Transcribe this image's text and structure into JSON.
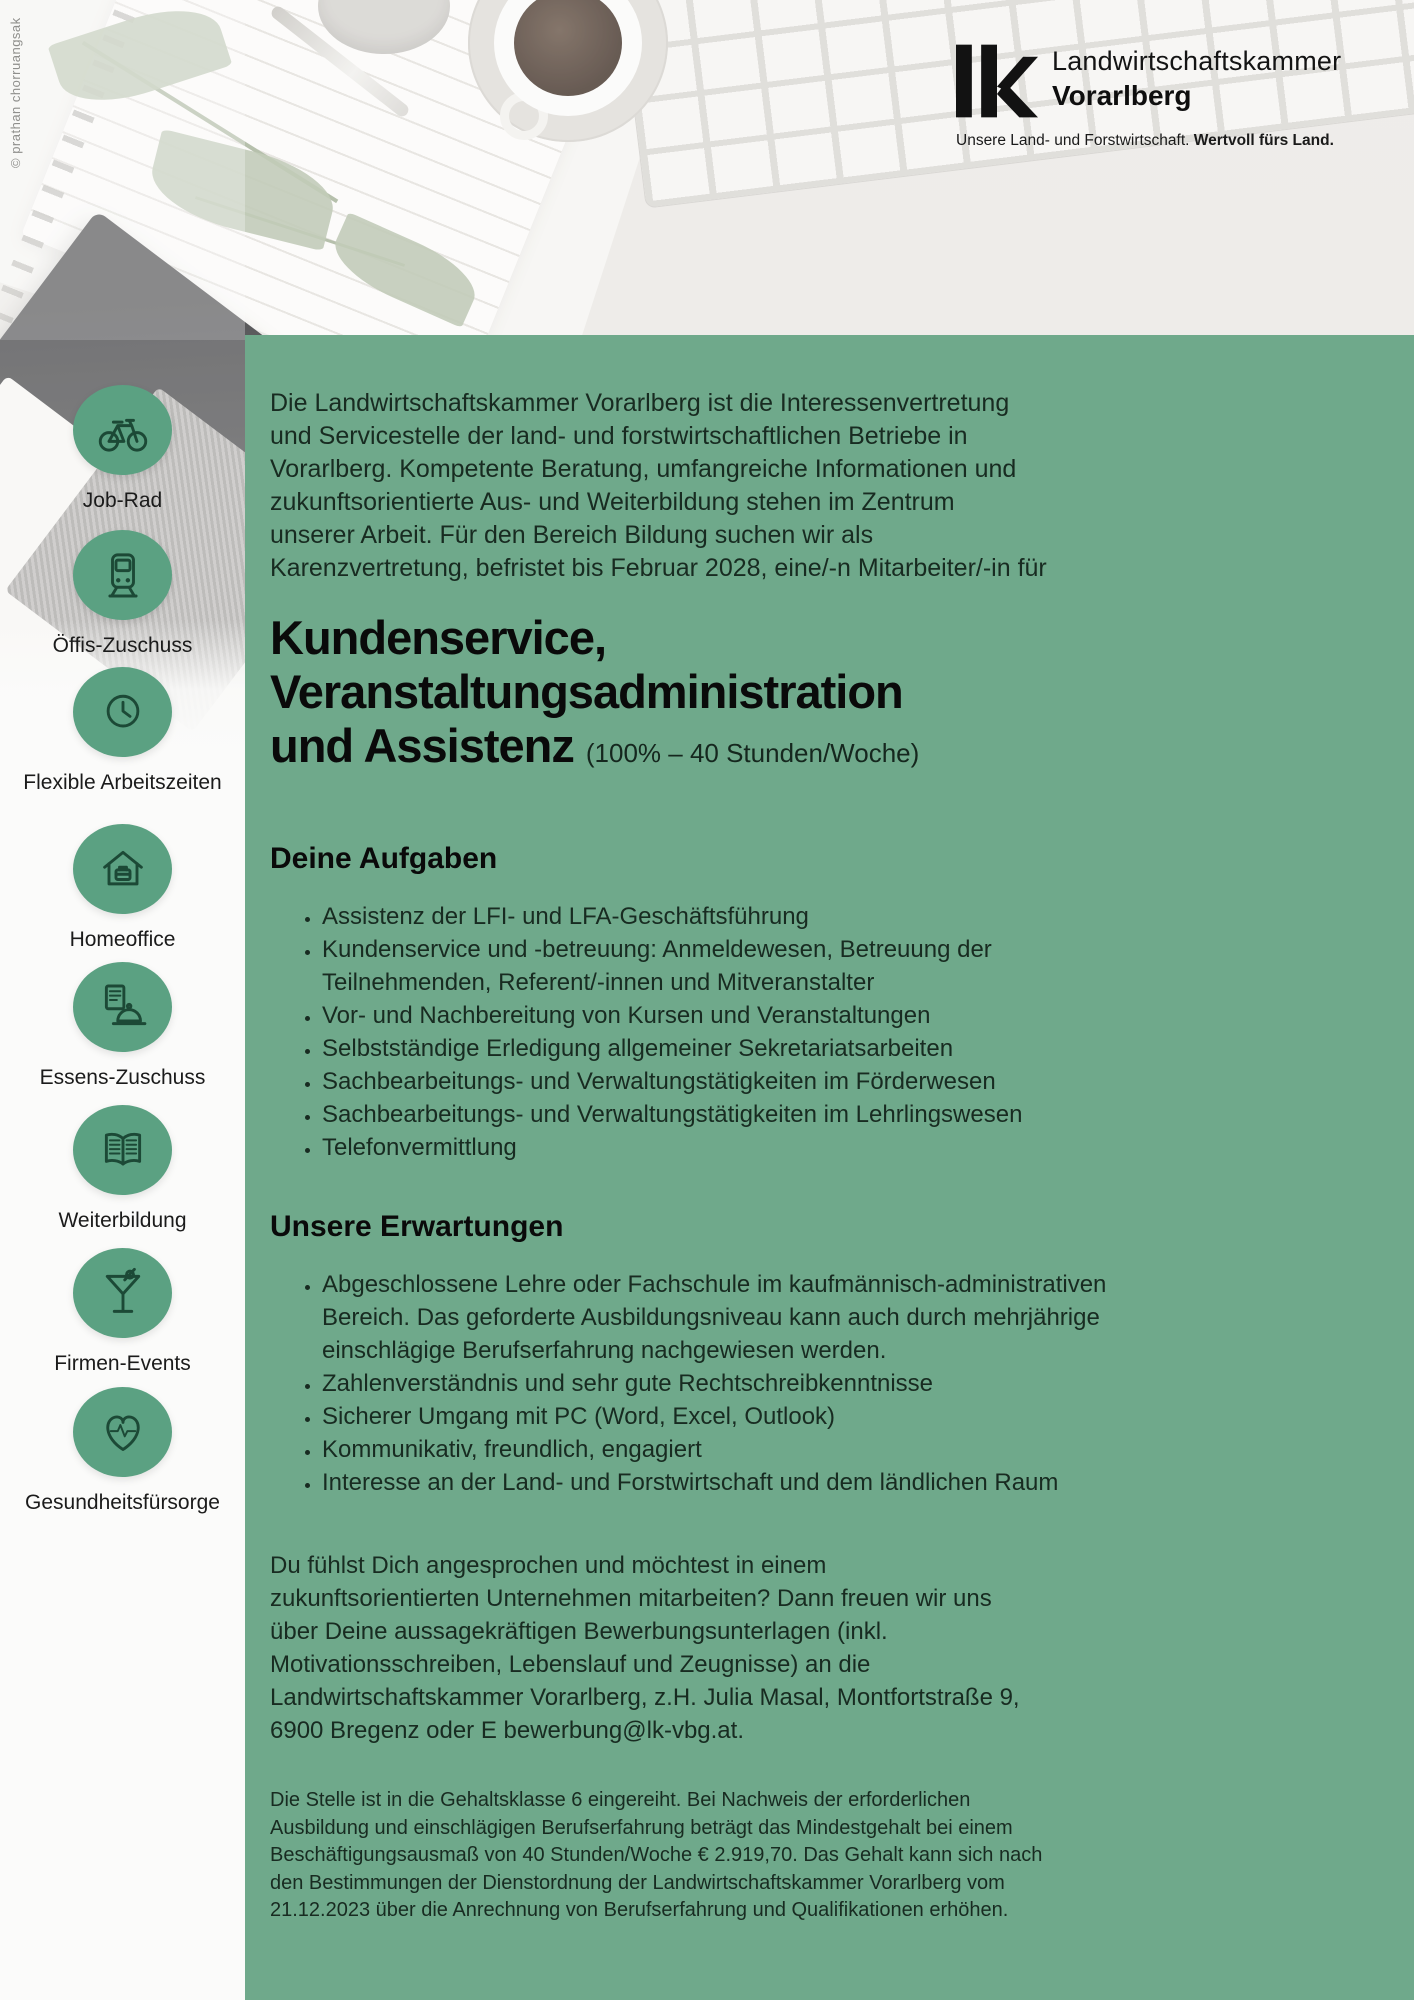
{
  "photo_credit": "© prathan chorruangsak",
  "logo": {
    "mark": "lk",
    "name_line1": "Landwirtschaftskammer",
    "name_line2": "Vorarlberg",
    "tagline_regular": "Unsere Land- und Forstwirtschaft.",
    "tagline_bold": "Wertvoll fürs Land."
  },
  "sidebar": {
    "benefits": [
      {
        "icon": "bicycle-icon",
        "label": "Job-Rad"
      },
      {
        "icon": "train-icon",
        "label": "Öffis-Zuschuss"
      },
      {
        "icon": "clock-icon",
        "label": "Flexible Arbeitszeiten"
      },
      {
        "icon": "homeoffice-icon",
        "label": "Homeoffice"
      },
      {
        "icon": "meal-icon",
        "label": "Essens-Zuschuss"
      },
      {
        "icon": "book-icon",
        "label": "Weiterbildung"
      },
      {
        "icon": "cocktail-icon",
        "label": "Firmen-Events"
      },
      {
        "icon": "heart-pulse-icon",
        "label": "Gesundheitsfürsorge"
      }
    ]
  },
  "main": {
    "intro_lines": [
      "Die Landwirtschaftskammer Vorarlberg ist die Interessenvertretung",
      "und Servicestelle der land- und forstwirtschaftlichen Betriebe in",
      "Vorarlberg. Kompetente Beratung, umfangreiche Informationen und",
      "zukunftsorientierte Aus- und Weiterbildung stehen im Zentrum",
      "unserer Arbeit. Für den Bereich Bildung suchen wir als",
      "Karenzvertretung, befristet bis Februar 2028, eine/-n Mitarbeiter/-in für"
    ],
    "title_lines": [
      "Kundenservice,",
      "Veranstaltungsadministration",
      "und Assistenz"
    ],
    "title_suffix": "(100% – 40 Stunden/Woche)",
    "sections": [
      {
        "heading": "Deine Aufgaben",
        "bullets": [
          "Assistenz der LFI- und LFA-Geschäftsführung",
          "Kundenservice und -betreuung: Anmeldewesen, Betreuung der Teilnehmenden, Referent/-innen und Mitveranstalter",
          "Vor- und Nachbereitung von Kursen und Veranstaltungen",
          "Selbstständige Erledigung allgemeiner Sekretariatsarbeiten",
          "Sachbearbeitungs- und Verwaltungstätigkeiten im Förderwesen",
          "Sachbearbeitungs- und Verwaltungstätigkeiten im Lehrlingswesen",
          "Telefonvermittlung"
        ]
      },
      {
        "heading": "Unsere Erwartungen",
        "bullets": [
          "Abgeschlossene Lehre oder Fachschule im kaufmännisch-administrativen Bereich. Das geforderte Ausbildungsniveau kann auch durch mehrjährige einschlägige Berufserfahrung nachgewiesen werden.",
          "Zahlenverständnis und sehr gute Rechtschreibkenntnisse",
          "Sicherer Umgang mit PC (Word, Excel, Outlook)",
          "Kommunikativ, freundlich, engagiert",
          "Interesse an der Land- und Forstwirtschaft und dem ländlichen Raum"
        ]
      }
    ],
    "closing_lines": [
      "Du fühlst Dich angesprochen und möchtest in einem",
      "zukunftsorientierten Unternehmen mitarbeiten? Dann freuen wir uns",
      "über Deine aussagekräftigen Bewerbungsunterlagen (inkl.",
      "Motivationsschreiben, Lebenslauf und Zeugnisse) an die",
      "Landwirtschaftskammer Vorarlberg, z.H. Julia Masal, Montfortstraße 9,",
      "6900 Bregenz oder E bewerbung@lk-vbg.at."
    ],
    "fine_print_lines": [
      "Die Stelle ist in die Gehaltsklasse 6 eingereiht. Bei Nachweis der erforderlichen",
      "Ausbildung und einschlägigen Berufserfahrung beträgt das Mindestgehalt bei einem",
      "Beschäftigungsausmaß von 40 Stunden/Woche € 2.919,70. Das Gehalt kann sich nach",
      "den Bestimmungen der Dienstordnung der Landwirtschaftskammer Vorarlberg vom",
      "21.12.2023 über die Anrechnung von Berufserfahrung und Qualifikationen erhöhen."
    ]
  },
  "colors": {
    "panel_green": "#6fa98b",
    "circle_green": "#5ba182",
    "icon_stroke": "#1c4936"
  }
}
